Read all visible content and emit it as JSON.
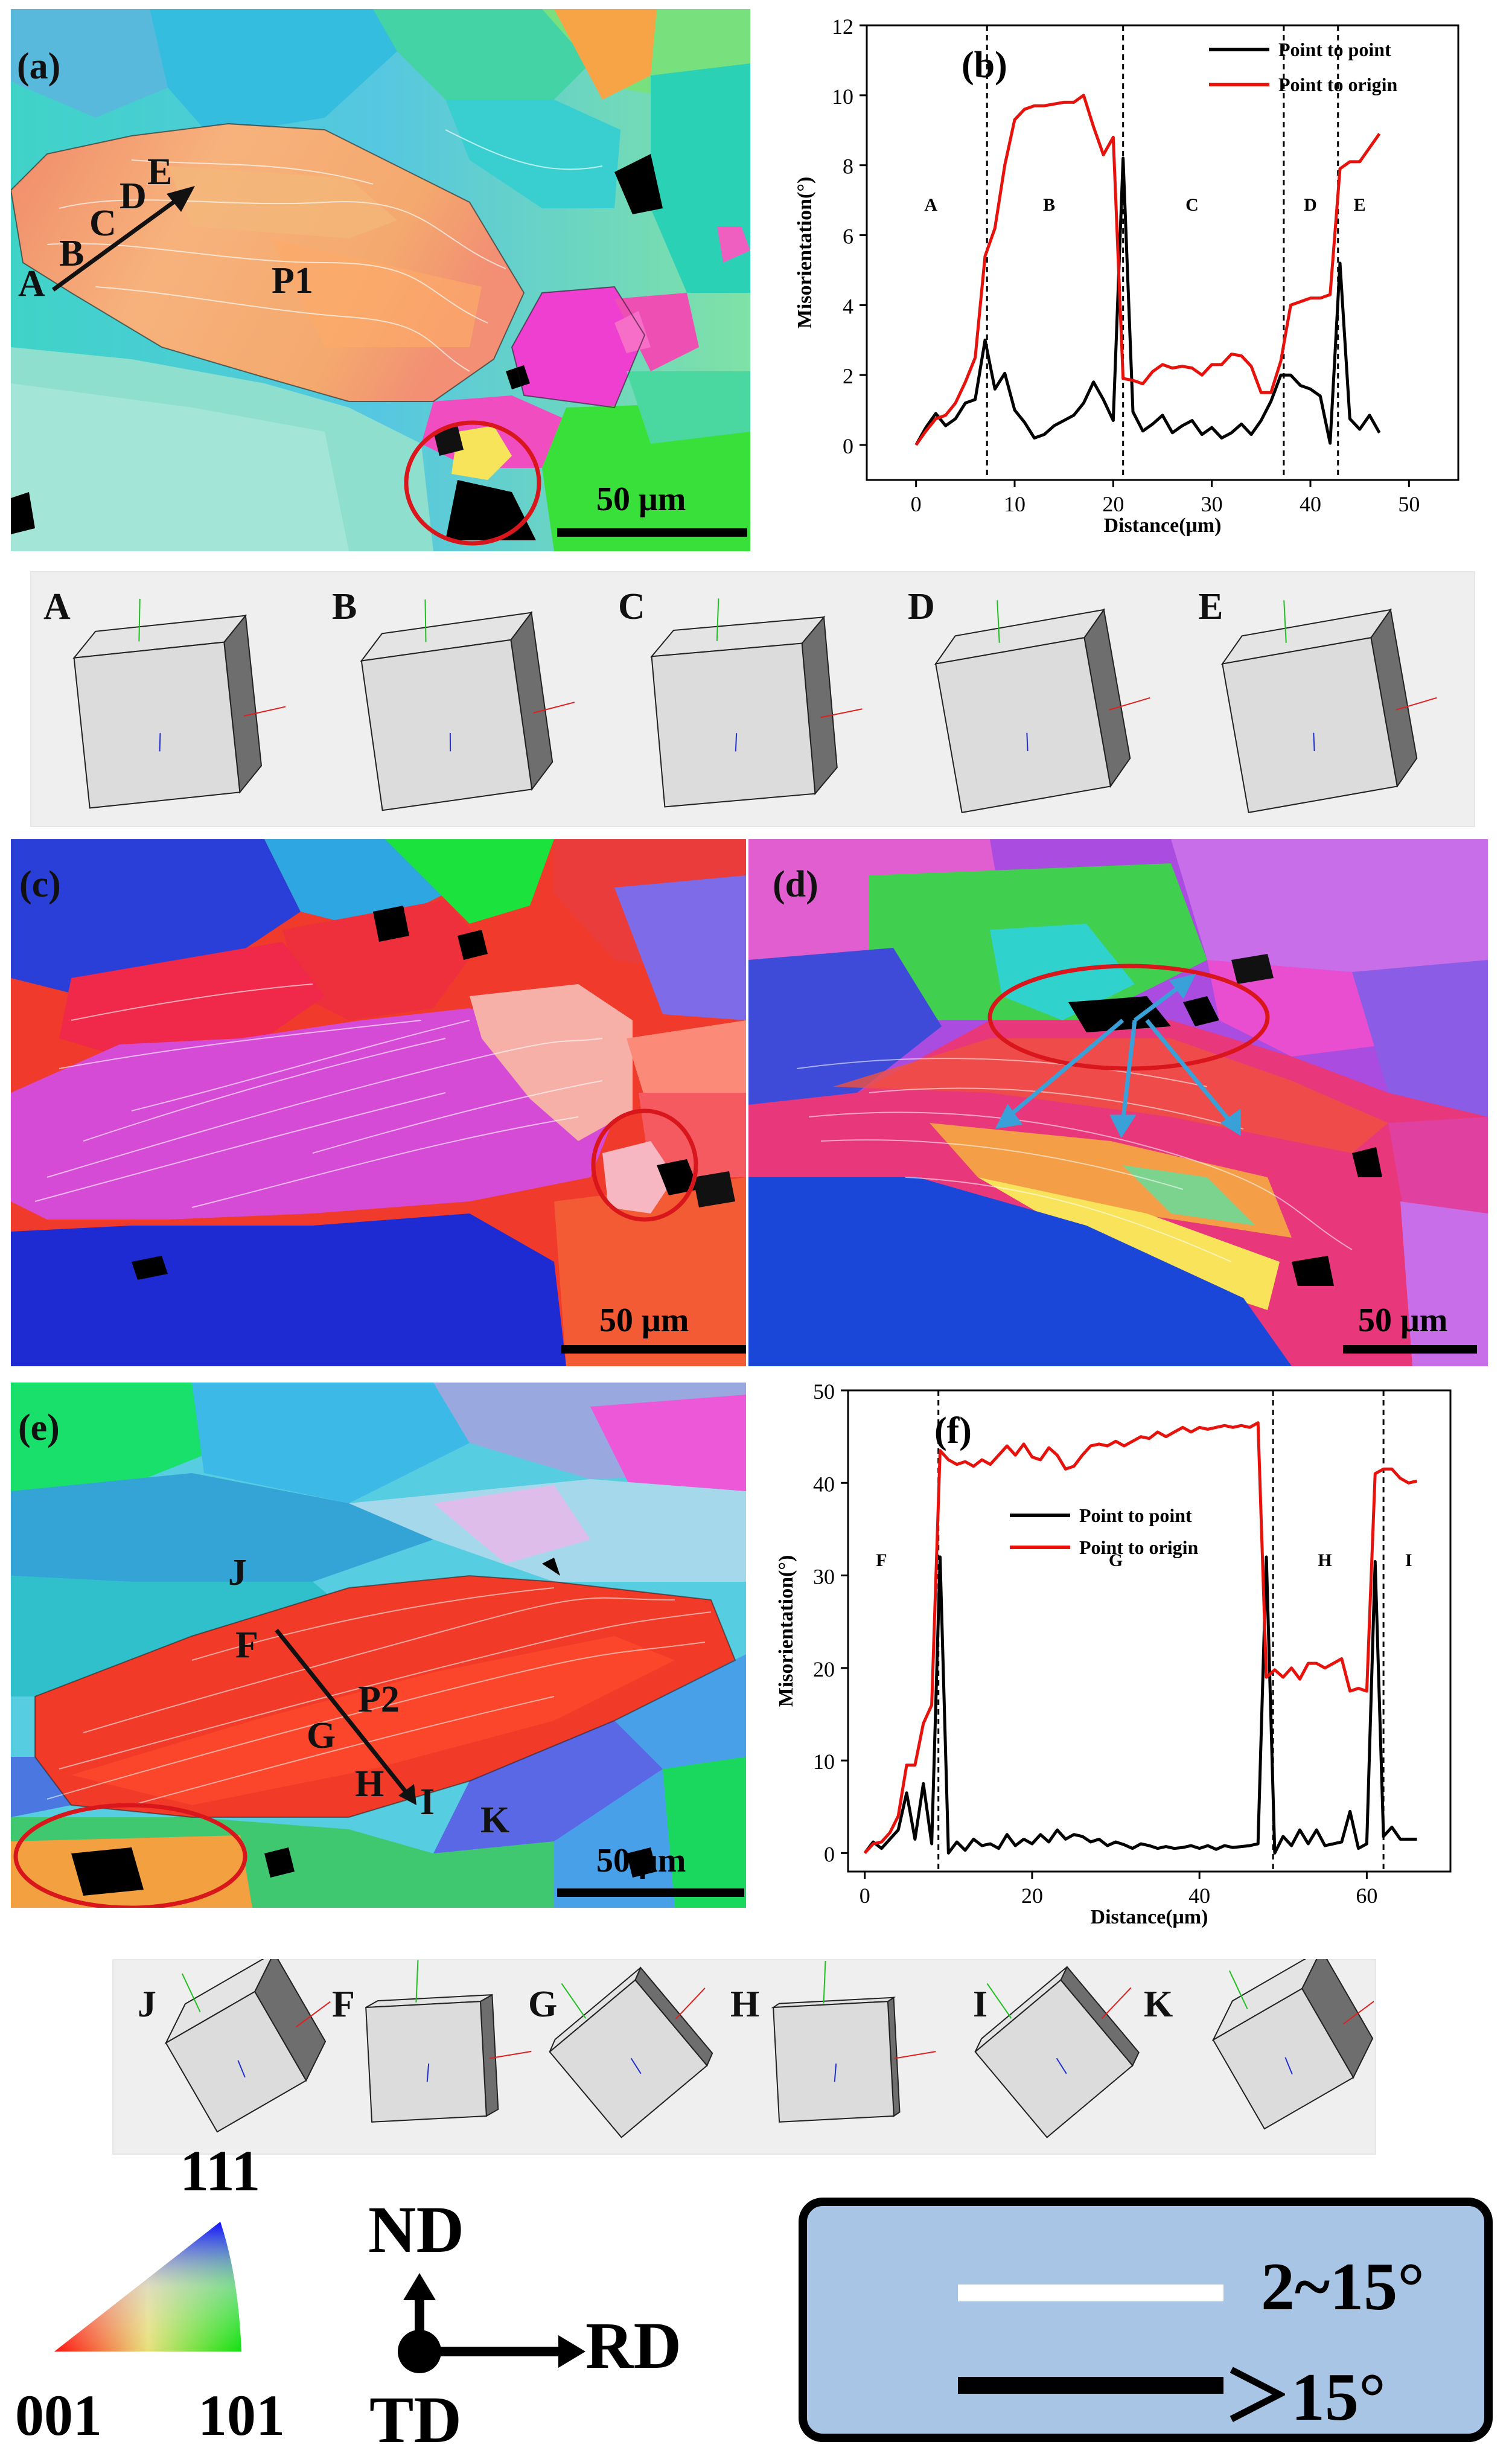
{
  "panels": {
    "a": {
      "label": "(a)",
      "points": [
        "A",
        "B",
        "C",
        "D",
        "E"
      ],
      "grain": "P1",
      "scale": "50 μm"
    },
    "b": {
      "label": "(b)"
    },
    "c": {
      "label": "(c)",
      "scale": "50 μm"
    },
    "d": {
      "label": "(d)",
      "scale": "50 μm"
    },
    "e": {
      "label": "(e)",
      "points": [
        "J",
        "F",
        "G",
        "H",
        "I",
        "K"
      ],
      "grain": "P2",
      "scale": "50 μm"
    },
    "f": {
      "label": "(f)"
    }
  },
  "cube_rows": {
    "top": [
      "A",
      "B",
      "C",
      "D",
      "E"
    ],
    "bottom": [
      "J",
      "F",
      "G",
      "H",
      "I",
      "K"
    ]
  },
  "colors": {
    "point_to_point": "#000000",
    "point_to_origin": "#e8120c",
    "legend_bg": "#a9c5e6",
    "circle": "#d9161c",
    "arrow_cyan": "#3aa0d8"
  },
  "chart_data": [
    {
      "type": "line",
      "panel": "(b)",
      "xlabel": "Distance(μm)",
      "ylabel": "Misorientation(°)",
      "xlim": [
        -5,
        55
      ],
      "ylim": [
        -1,
        12
      ],
      "xticks": [
        0,
        10,
        20,
        30,
        40,
        50
      ],
      "yticks": [
        0,
        2,
        4,
        6,
        8,
        10,
        12
      ],
      "legend": "top-right",
      "boundaries": [
        7.2,
        21,
        37.3,
        42.8
      ],
      "region_labels": [
        {
          "text": "A",
          "x": 1.5
        },
        {
          "text": "B",
          "x": 13.5
        },
        {
          "text": "C",
          "x": 28
        },
        {
          "text": "D",
          "x": 40
        },
        {
          "text": "E",
          "x": 45
        }
      ],
      "region_label_y": 6.7,
      "series": [
        {
          "name": "Point to point",
          "color": "#000000",
          "x": [
            0,
            1,
            2,
            3,
            4,
            5,
            6,
            7,
            8,
            9,
            10,
            11,
            12,
            13,
            14,
            15,
            16,
            17,
            18,
            19,
            20,
            21,
            22,
            23,
            24,
            25,
            26,
            27,
            28,
            29,
            30,
            31,
            32,
            33,
            34,
            35,
            36,
            37,
            38,
            39,
            40,
            41,
            42,
            43,
            44,
            45,
            46,
            47
          ],
          "y": [
            0,
            0.5,
            0.9,
            0.55,
            0.75,
            1.2,
            1.3,
            3.0,
            1.6,
            2.05,
            1.0,
            0.65,
            0.2,
            0.3,
            0.55,
            0.7,
            0.85,
            1.2,
            1.8,
            1.3,
            0.7,
            8.2,
            0.95,
            0.4,
            0.6,
            0.85,
            0.35,
            0.55,
            0.7,
            0.3,
            0.5,
            0.2,
            0.35,
            0.6,
            0.3,
            0.7,
            1.25,
            2.0,
            2.0,
            1.7,
            1.6,
            1.4,
            0.05,
            5.2,
            0.75,
            0.45,
            0.85,
            0.35
          ]
        },
        {
          "name": "Point to origin",
          "color": "#e8120c",
          "x": [
            0,
            1,
            2,
            3,
            4,
            5,
            6,
            7,
            8,
            9,
            10,
            11,
            12,
            13,
            14,
            15,
            16,
            17,
            18,
            19,
            20,
            21,
            22,
            23,
            24,
            25,
            26,
            27,
            28,
            29,
            30,
            31,
            32,
            33,
            34,
            35,
            36,
            37,
            38,
            39,
            40,
            41,
            42,
            43,
            44,
            45,
            46,
            47
          ],
          "y": [
            0,
            0.4,
            0.75,
            0.85,
            1.2,
            1.8,
            2.5,
            5.4,
            6.2,
            8.0,
            9.3,
            9.6,
            9.7,
            9.7,
            9.75,
            9.8,
            9.8,
            10.0,
            9.1,
            8.3,
            8.8,
            1.9,
            1.85,
            1.75,
            2.1,
            2.3,
            2.2,
            2.25,
            2.2,
            2.0,
            2.3,
            2.3,
            2.6,
            2.55,
            2.25,
            1.5,
            1.5,
            2.4,
            4.0,
            4.1,
            4.2,
            4.2,
            4.3,
            7.9,
            8.1,
            8.1,
            8.5,
            8.9
          ]
        }
      ]
    },
    {
      "type": "line",
      "panel": "(f)",
      "xlabel": "Distance(μm)",
      "ylabel": "Misorientation(°)",
      "xlim": [
        -2,
        70
      ],
      "ylim": [
        -2,
        50
      ],
      "xticks": [
        0,
        20,
        40,
        60
      ],
      "yticks": [
        0,
        10,
        20,
        30,
        40,
        50
      ],
      "legend": "upper-center",
      "boundaries": [
        8.8,
        48.8,
        62
      ],
      "region_labels": [
        {
          "text": "F",
          "x": 2
        },
        {
          "text": "G",
          "x": 30
        },
        {
          "text": "H",
          "x": 55
        },
        {
          "text": "I",
          "x": 65
        }
      ],
      "region_label_y": 31,
      "series": [
        {
          "name": "Point to point",
          "color": "#000000",
          "x": [
            0,
            1,
            2,
            3,
            4,
            5,
            6,
            7,
            8,
            9,
            10,
            11,
            12,
            13,
            14,
            15,
            16,
            17,
            18,
            19,
            20,
            21,
            22,
            23,
            24,
            25,
            26,
            27,
            28,
            29,
            30,
            31,
            32,
            33,
            34,
            35,
            36,
            37,
            38,
            39,
            40,
            41,
            42,
            43,
            44,
            45,
            46,
            47,
            48,
            49,
            50,
            51,
            52,
            53,
            54,
            55,
            56,
            57,
            58,
            59,
            60,
            61,
            62,
            63,
            64,
            65,
            66
          ],
          "y": [
            0,
            1.2,
            0.5,
            1.5,
            2.5,
            6.5,
            1.5,
            7.5,
            1.0,
            32.0,
            0,
            1.2,
            0.3,
            1.5,
            0.8,
            1.0,
            0.5,
            2.0,
            0.8,
            1.5,
            1.0,
            2.0,
            1.2,
            2.5,
            1.5,
            2.0,
            1.8,
            1.2,
            1.5,
            0.8,
            1.2,
            0.9,
            0.5,
            1.0,
            0.8,
            0.5,
            0.7,
            0.5,
            0.6,
            0.8,
            0.5,
            0.8,
            0.4,
            0.8,
            0.6,
            0.7,
            0.8,
            1.0,
            32.0,
            0,
            1.8,
            0.8,
            2.5,
            1.0,
            2.5,
            0.8,
            1.0,
            1.2,
            4.5,
            0.5,
            1.0,
            31.5,
            1.8,
            2.8,
            1.5,
            1.5,
            1.5
          ]
        },
        {
          "name": "Point to origin",
          "color": "#e8120c",
          "x": [
            0,
            1,
            2,
            3,
            4,
            5,
            6,
            7,
            8,
            9,
            10,
            11,
            12,
            13,
            14,
            15,
            16,
            17,
            18,
            19,
            20,
            21,
            22,
            23,
            24,
            25,
            26,
            27,
            28,
            29,
            30,
            31,
            32,
            33,
            34,
            35,
            36,
            37,
            38,
            39,
            40,
            41,
            42,
            43,
            44,
            45,
            46,
            47,
            48,
            49,
            50,
            51,
            52,
            53,
            54,
            55,
            56,
            57,
            58,
            59,
            60,
            61,
            62,
            63,
            64,
            65,
            66
          ],
          "y": [
            0,
            1.0,
            1.2,
            2.2,
            4.0,
            9.5,
            9.5,
            14.0,
            16.0,
            43.5,
            42.5,
            42.0,
            42.3,
            41.8,
            42.5,
            42.0,
            43.0,
            44.0,
            43.0,
            44.2,
            42.8,
            42.5,
            43.8,
            43.0,
            41.5,
            41.8,
            43.0,
            44.0,
            44.2,
            44.0,
            44.5,
            44.0,
            44.5,
            45.0,
            44.8,
            45.5,
            45.0,
            45.5,
            46.0,
            45.5,
            46.0,
            45.8,
            46.0,
            46.2,
            46.0,
            46.2,
            46.0,
            46.5,
            19.0,
            19.8,
            19.0,
            20.0,
            18.8,
            20.5,
            20.5,
            20.0,
            20.5,
            21.0,
            17.5,
            17.8,
            17.5,
            41.0,
            41.5,
            41.5,
            40.5,
            40.0,
            40.2
          ]
        }
      ]
    }
  ],
  "ipf_legend": {
    "top": "111",
    "left": "001",
    "right": "101"
  },
  "axes_legend": {
    "vertical": "ND",
    "horizontal": "RD",
    "origin": "TD"
  },
  "boundary_legend": {
    "thin": "2~15°",
    "thick": "＞15°"
  }
}
